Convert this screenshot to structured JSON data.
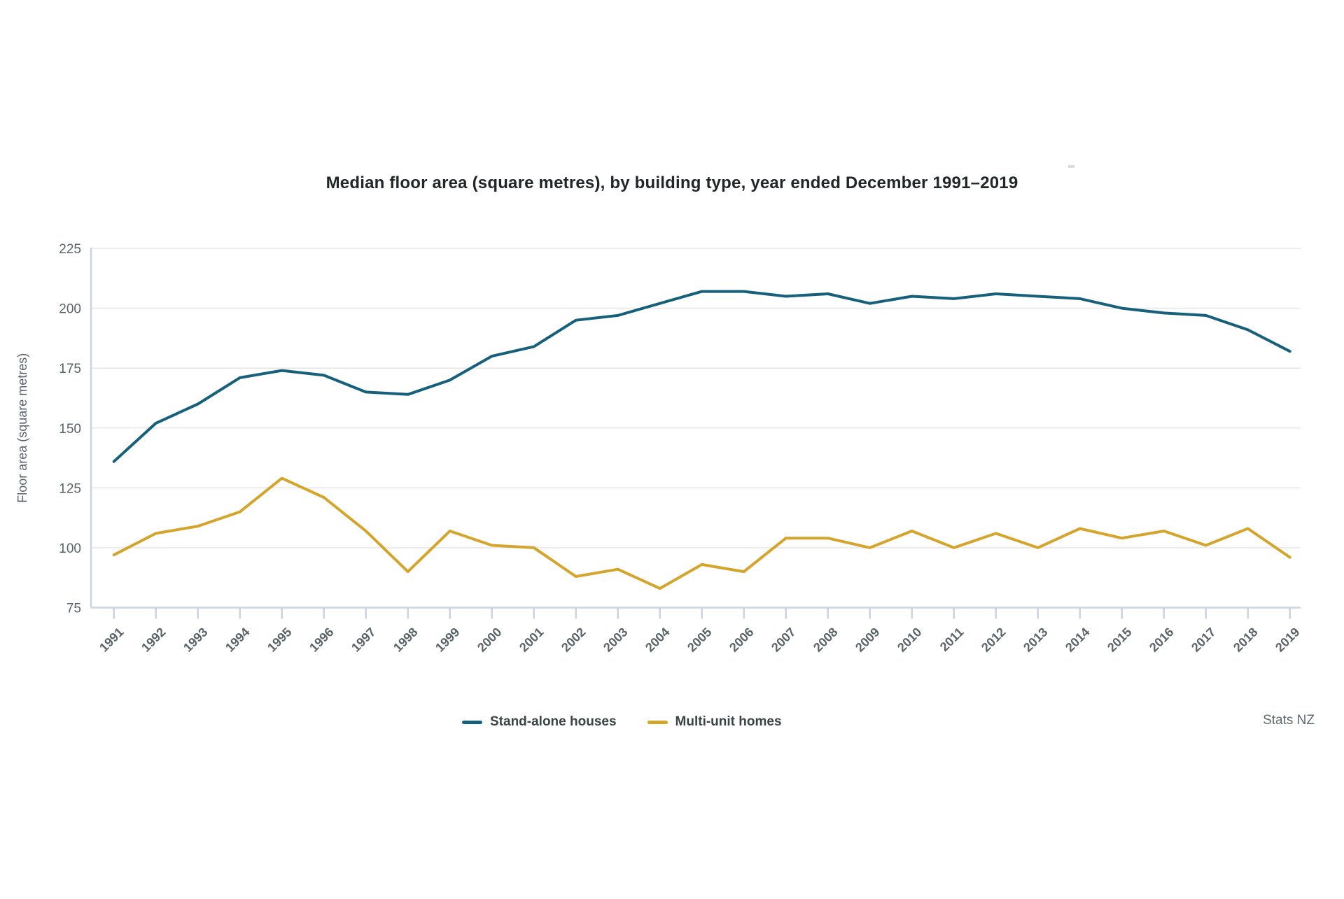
{
  "chart": {
    "title": "Median floor area (square metres), by building type, year ended December 1991–2019",
    "source": "Stats NZ"
  },
  "chart_data": {
    "type": "line",
    "title": "Median floor area (square metres), by building type, year ended December 1991–2019",
    "xlabel": "",
    "ylabel": "Floor area (square metres)",
    "ylim": [
      75,
      225
    ],
    "yticks": [
      225,
      200,
      175,
      150,
      125,
      100,
      75
    ],
    "grid": true,
    "legend_position": "bottom",
    "categories": [
      1991,
      1992,
      1993,
      1994,
      1995,
      1996,
      1997,
      1998,
      1999,
      2000,
      2001,
      2002,
      2003,
      2004,
      2005,
      2006,
      2007,
      2008,
      2009,
      2010,
      2011,
      2012,
      2013,
      2014,
      2015,
      2016,
      2017,
      2018,
      2019
    ],
    "series": [
      {
        "name": "Stand-alone houses",
        "color": "#17607C",
        "values": [
          136,
          152,
          160,
          171,
          174,
          172,
          165,
          164,
          170,
          180,
          184,
          195,
          197,
          202,
          207,
          207,
          205,
          206,
          202,
          205,
          204,
          206,
          205,
          204,
          200,
          198,
          197,
          191,
          182
        ]
      },
      {
        "name": "Multi-unit homes",
        "color": "#D4A42B",
        "values": [
          97,
          106,
          109,
          115,
          129,
          121,
          107,
          90,
          107,
          101,
          100,
          88,
          91,
          83,
          93,
          90,
          104,
          104,
          100,
          107,
          100,
          106,
          100,
          108,
          104,
          107,
          101,
          108,
          96
        ]
      }
    ]
  },
  "colors": {
    "grid": "#e7e7e7",
    "axis": "#c9d5e1",
    "tick_label": "#5a6468",
    "title_text": "#212628",
    "legend_text": "#3c4345",
    "source_text": "#5f6b70"
  }
}
